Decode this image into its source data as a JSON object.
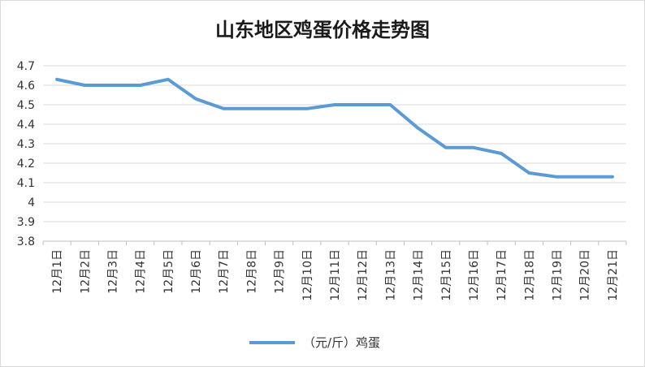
{
  "chart_data": {
    "type": "line",
    "title": "山东地区鸡蛋价格走势图",
    "xlabel": "",
    "ylabel": "",
    "categories": [
      "12月1日",
      "12月2日",
      "12月3日",
      "12月4日",
      "12月5日",
      "12月6日",
      "12月7日",
      "12月8日",
      "12月9日",
      "12月10日",
      "12月11日",
      "12月12日",
      "12月13日",
      "12月14日",
      "12月15日",
      "12月16日",
      "12月17日",
      "12月18日",
      "12月19日",
      "12月20日",
      "12月21日"
    ],
    "series": [
      {
        "name": "（元/斤）鸡蛋",
        "color": "#5b9bd5",
        "values": [
          4.63,
          4.6,
          4.6,
          4.6,
          4.63,
          4.53,
          4.48,
          4.48,
          4.48,
          4.48,
          4.5,
          4.5,
          4.5,
          4.38,
          4.28,
          4.28,
          4.25,
          4.15,
          4.13,
          4.13,
          4.13
        ]
      }
    ],
    "ylim": [
      3.8,
      4.7
    ],
    "yticks": [
      "3.8",
      "3.9",
      "4",
      "4.1",
      "4.2",
      "4.3",
      "4.4",
      "4.5",
      "4.6",
      "4.7"
    ],
    "grid": true,
    "legend_position": "bottom"
  }
}
